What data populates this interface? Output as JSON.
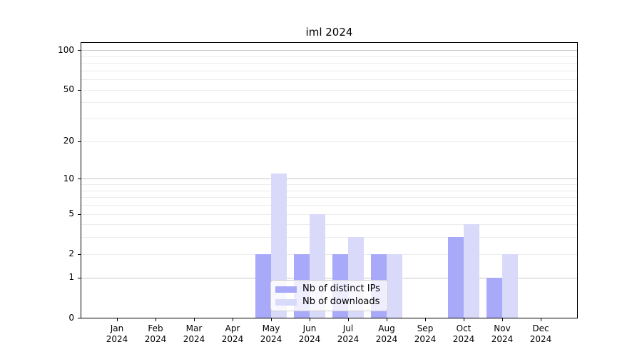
{
  "chart_data": {
    "type": "bar",
    "title": "iml 2024",
    "categories": [
      "Jan",
      "Feb",
      "Mar",
      "Apr",
      "May",
      "Jun",
      "Jul",
      "Aug",
      "Sep",
      "Oct",
      "Nov",
      "Dec"
    ],
    "category_year": "2024",
    "series": [
      {
        "name": "Nb of distinct IPs",
        "color": "#a9a9fa",
        "values": [
          0,
          0,
          0,
          0,
          2,
          2,
          2,
          2,
          0,
          3,
          1,
          0
        ]
      },
      {
        "name": "Nb of downloads",
        "color": "#d9d9fa",
        "values": [
          0,
          0,
          0,
          0,
          11,
          5,
          3,
          2,
          0,
          4,
          2,
          0
        ]
      }
    ],
    "y_scale": "log1p",
    "ylim": [
      0,
      113.5
    ],
    "y_ticks": [
      0,
      1,
      2,
      5,
      10,
      20,
      50,
      100
    ],
    "y_major_gridlines": [
      1,
      10,
      100
    ],
    "y_minor_gridlines": [
      2,
      3,
      4,
      5,
      6,
      7,
      8,
      9,
      20,
      30,
      40,
      50,
      60,
      70,
      80,
      90
    ],
    "grid": true,
    "legend_position": "lower center",
    "background_color": "#ffffff",
    "spine_color": "#000000"
  }
}
